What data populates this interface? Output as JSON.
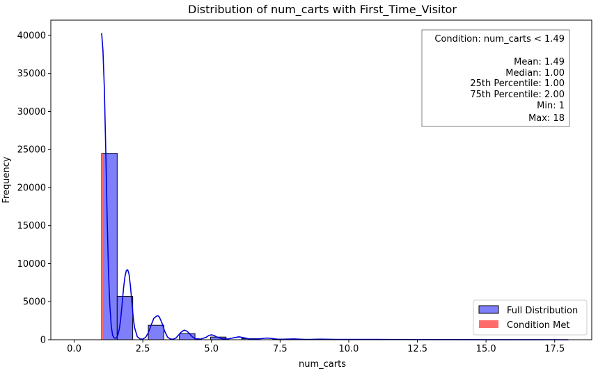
{
  "chart_data": {
    "type": "bar",
    "title": "Distribution of num_carts with First_Time_Visitor",
    "xlabel": "num_carts",
    "ylabel": "Frequency",
    "xlim": [
      -0.85,
      18.85
    ],
    "ylim": [
      0,
      42000
    ],
    "x_ticks": [
      0.0,
      2.5,
      5.0,
      7.5,
      10.0,
      12.5,
      15.0,
      17.5
    ],
    "x_tick_labels": [
      "0.0",
      "2.5",
      "5.0",
      "7.5",
      "10.0",
      "12.5",
      "15.0",
      "17.5"
    ],
    "y_ticks": [
      0,
      5000,
      10000,
      15000,
      20000,
      25000,
      30000,
      35000,
      40000
    ],
    "y_tick_labels": [
      "0",
      "5000",
      "10000",
      "15000",
      "20000",
      "25000",
      "30000",
      "35000",
      "40000"
    ],
    "grid": false,
    "full_distribution": {
      "name": "Full Distribution",
      "color": "#7f7ffb",
      "edge_color": "#000000",
      "bin_edges": [
        1.0,
        1.567,
        2.133,
        2.7,
        3.267,
        3.833,
        4.4,
        4.967,
        5.533,
        6.1,
        6.667,
        7.233,
        7.8,
        8.367,
        8.933,
        9.5,
        10.067,
        10.633,
        11.2,
        11.767,
        12.333,
        12.9,
        13.467,
        14.033,
        14.6,
        15.167,
        15.733,
        16.3,
        16.867,
        17.433,
        18.0
      ],
      "counts": [
        24500,
        5700,
        0,
        1900,
        0,
        800,
        0,
        350,
        0,
        150,
        0,
        80,
        0,
        40,
        0,
        25,
        0,
        15,
        0,
        10,
        0,
        8,
        0,
        5,
        0,
        4,
        0,
        3,
        0,
        2
      ]
    },
    "condition_met": {
      "name": "Condition Met",
      "color": "#ff6b6b",
      "x0": 1.0,
      "x1": 1.03,
      "value": 24500
    },
    "kde": {
      "color": "#0000dd",
      "x": [
        1.0,
        1.05,
        1.1,
        1.15,
        1.2,
        1.25,
        1.3,
        1.35,
        1.4,
        1.45,
        1.5,
        1.55,
        1.6,
        1.65,
        1.7,
        1.75,
        1.8,
        1.85,
        1.9,
        1.95,
        2.0,
        2.05,
        2.1,
        2.15,
        2.2,
        2.3,
        2.4,
        2.5,
        2.6,
        2.7,
        2.8,
        2.9,
        3.0,
        3.05,
        3.1,
        3.2,
        3.3,
        3.4,
        3.5,
        3.6,
        3.7,
        3.8,
        3.9,
        4.0,
        4.1,
        4.2,
        4.3,
        4.4,
        4.6,
        4.8,
        4.9,
        5.0,
        5.1,
        5.2,
        5.4,
        5.6,
        5.8,
        6.0,
        6.2,
        6.4,
        6.6,
        6.8,
        7.0,
        7.2,
        7.4,
        7.6,
        7.8,
        8.0,
        8.2,
        8.4,
        8.6,
        8.8,
        9.0,
        9.5,
        10.0,
        10.5,
        11.0,
        11.5,
        12.0,
        13.0,
        14.0,
        15.0,
        16.0,
        17.0,
        18.0
      ],
      "y": [
        40300,
        38000,
        33000,
        25000,
        16000,
        9000,
        4500,
        1800,
        600,
        250,
        200,
        300,
        700,
        1500,
        2900,
        4800,
        6800,
        8300,
        9100,
        9200,
        8600,
        7000,
        5000,
        3000,
        1600,
        400,
        100,
        80,
        300,
        900,
        1900,
        2800,
        3100,
        3150,
        3000,
        2200,
        1100,
        350,
        100,
        60,
        200,
        600,
        1000,
        1250,
        1150,
        800,
        400,
        150,
        80,
        300,
        550,
        650,
        550,
        350,
        120,
        100,
        250,
        380,
        250,
        90,
        80,
        150,
        220,
        160,
        70,
        60,
        90,
        110,
        70,
        40,
        40,
        60,
        70,
        40,
        50,
        40,
        35,
        30,
        25,
        15,
        15,
        10,
        8,
        5,
        3
      ]
    },
    "legend": {
      "placement": "lower-right",
      "entries": [
        "Full Distribution",
        "Condition Met"
      ]
    },
    "annotation": {
      "placement": "top-right",
      "lines": [
        "Condition: num_carts < 1.49",
        "",
        "Mean: 1.49",
        "Median: 1.00",
        "25th Percentile: 1.00",
        "75th Percentile: 2.00",
        "Min: 1",
        "Max: 18"
      ]
    }
  }
}
